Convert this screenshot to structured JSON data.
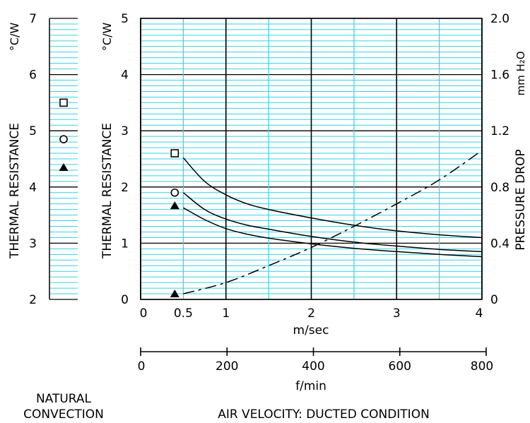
{
  "chart_data": [
    {
      "type": "scatter",
      "panel": "natural-convection",
      "ylabel": "THERMAL RESISTANCE",
      "yunit": "°C/W",
      "ylim": [
        2,
        7
      ],
      "yticks": [
        "2",
        "3",
        "4",
        "5",
        "6",
        "7"
      ],
      "grid": true,
      "caption_lines": [
        "NATURAL",
        "CONVECTION"
      ],
      "points": [
        {
          "marker": "square",
          "y": 5.5
        },
        {
          "marker": "circle",
          "y": 4.85
        },
        {
          "marker": "triangle",
          "y": 4.35
        }
      ]
    },
    {
      "type": "line",
      "panel": "ducted",
      "xlabel": "m/sec",
      "xlim": [
        0,
        4
      ],
      "xticks": [
        "0",
        "0.5",
        "1",
        "2",
        "3",
        "4"
      ],
      "x2label": "f/min",
      "x2ticks": [
        "0",
        "200",
        "400",
        "600",
        "800"
      ],
      "ylabel": "THERMAL RESISTANCE",
      "yunit": "°C/W",
      "ylim": [
        0,
        5
      ],
      "yticks": [
        "0",
        "1",
        "2",
        "3",
        "4",
        "5"
      ],
      "y2label": "PRESSURE DROP",
      "y2unit": "mm H₂O",
      "y2lim": [
        0,
        2.0
      ],
      "y2ticks": [
        "0",
        "0.4",
        "0.8",
        "1.2",
        "1.6",
        "2.0"
      ],
      "grid": true,
      "caption": "AIR VELOCITY:  DUCTED CONDITION",
      "series": [
        {
          "marker": "square",
          "marker_point": [
            0.4,
            2.6
          ],
          "x": [
            0.5,
            0.75,
            1,
            1.25,
            1.5,
            2,
            2.5,
            3,
            3.5,
            4
          ],
          "y": [
            2.52,
            2.1,
            1.86,
            1.7,
            1.6,
            1.45,
            1.32,
            1.22,
            1.15,
            1.1
          ]
        },
        {
          "marker": "circle",
          "marker_point": [
            0.4,
            1.9
          ],
          "x": [
            0.5,
            0.75,
            1,
            1.25,
            1.5,
            2,
            2.5,
            3,
            3.5,
            4
          ],
          "y": [
            1.9,
            1.6,
            1.43,
            1.32,
            1.25,
            1.12,
            1.02,
            0.95,
            0.89,
            0.85
          ]
        },
        {
          "marker": "triangle",
          "marker_point": [
            0.4,
            1.67
          ],
          "x": [
            0.5,
            0.75,
            1,
            1.25,
            1.5,
            2,
            2.5,
            3,
            3.5,
            4
          ],
          "y": [
            1.63,
            1.42,
            1.26,
            1.16,
            1.09,
            0.99,
            0.91,
            0.85,
            0.8,
            0.76
          ]
        },
        {
          "marker": "triangle",
          "axis": "pressure",
          "dashed": true,
          "marker_point": [
            0.4,
            0.04
          ],
          "x": [
            0.5,
            1,
            1.5,
            2,
            2.5,
            3,
            3.5,
            4
          ],
          "y": [
            0.04,
            0.12,
            0.24,
            0.37,
            0.52,
            0.68,
            0.85,
            1.06
          ]
        }
      ]
    }
  ]
}
